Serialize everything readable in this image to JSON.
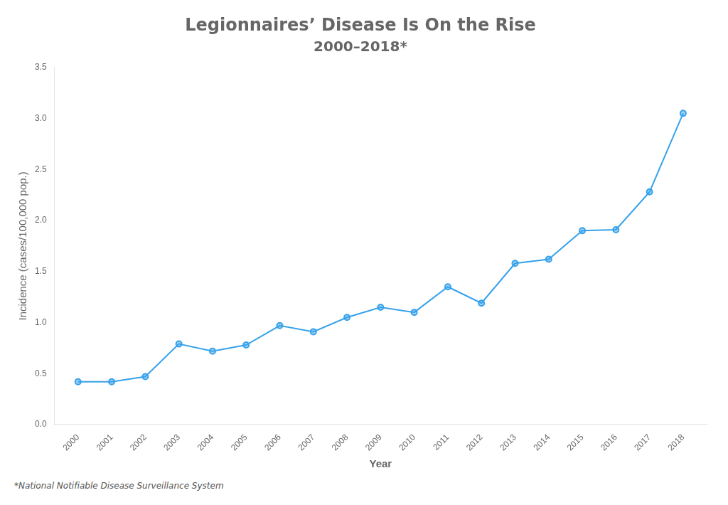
{
  "chart_data": {
    "type": "line",
    "title": "Legionnaires’ Disease Is On the Rise",
    "subtitle": "2000–2018*",
    "x_label": "Year",
    "y_label": "Incidence (cases/100,000 pop.)",
    "footnote": "*National Notifiable Disease Surveillance System",
    "x": [
      2000,
      2001,
      2002,
      2003,
      2004,
      2005,
      2006,
      2007,
      2008,
      2009,
      2010,
      2011,
      2012,
      2013,
      2014,
      2015,
      2016,
      2017,
      2018
    ],
    "values": [
      0.42,
      0.42,
      0.47,
      0.79,
      0.72,
      0.78,
      0.97,
      0.91,
      1.05,
      1.15,
      1.1,
      1.35,
      1.19,
      1.58,
      1.62,
      1.9,
      1.91,
      2.28,
      3.05
    ],
    "xlim": [
      1999.3,
      2018.7
    ],
    "xticks": [
      2000,
      2001,
      2002,
      2003,
      2004,
      2005,
      2006,
      2007,
      2008,
      2009,
      2010,
      2011,
      2012,
      2013,
      2014,
      2015,
      2016,
      2017,
      2018
    ],
    "ylim": [
      0,
      3.5
    ],
    "yticks": [
      {
        "value": 0,
        "label": "0.0"
      },
      0.5,
      {
        "value": 1,
        "label": "1.0"
      },
      1.5,
      {
        "value": 2,
        "label": "2.0"
      },
      2.5,
      {
        "value": 3,
        "label": "3.0"
      },
      3.5
    ],
    "marker": "circle",
    "grid": false
  }
}
